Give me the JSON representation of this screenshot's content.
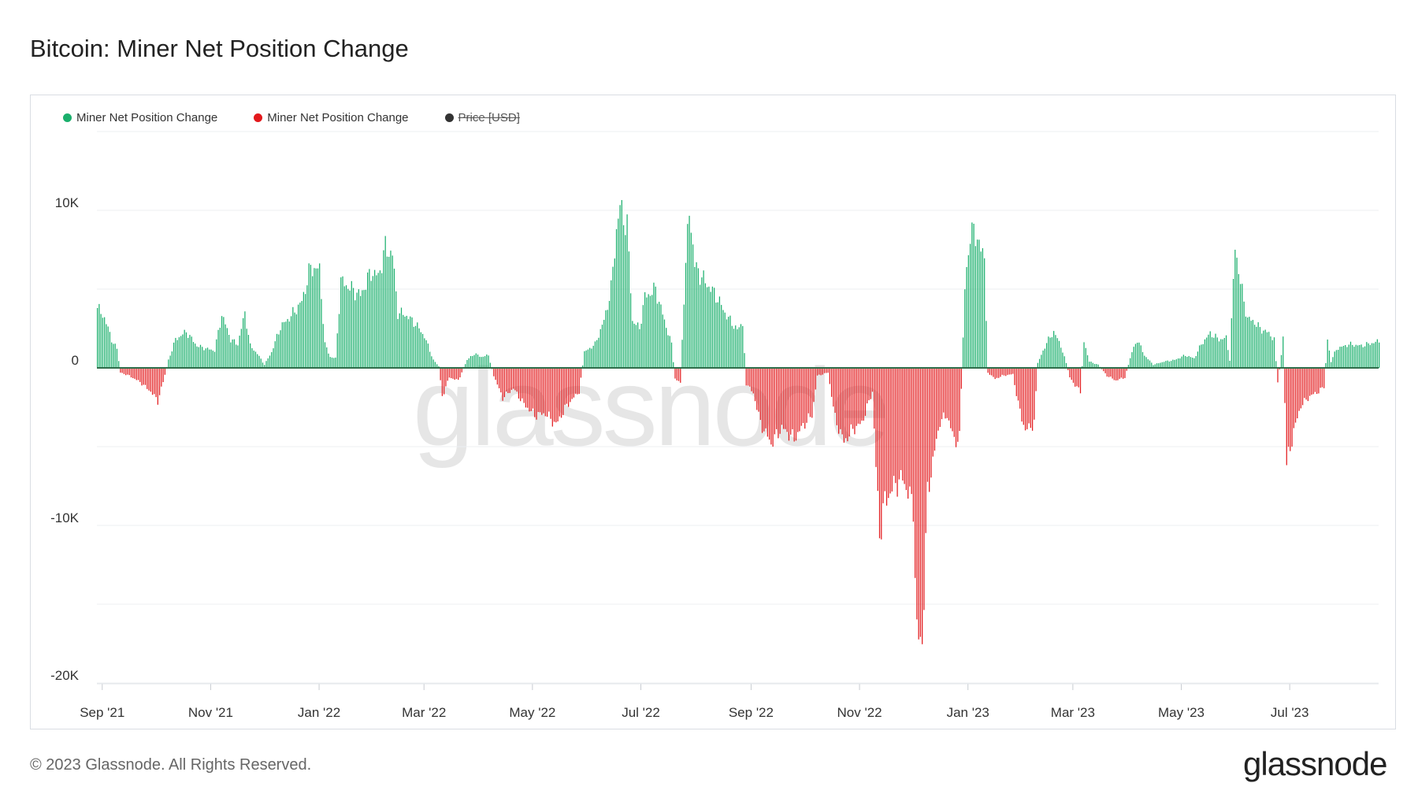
{
  "title": "Bitcoin: Miner Net Position Change",
  "legend": [
    {
      "label": "Miner Net Position Change",
      "color": "#1aaf6c"
    },
    {
      "label": "Miner Net Position Change",
      "color": "#e3191c"
    },
    {
      "label": "Price [USD]",
      "color": "#333333",
      "disabled": true
    }
  ],
  "footer": "© 2023 Glassnode. All Rights Reserved.",
  "logo": "glassnode",
  "watermark": "glassnode",
  "colors": {
    "positive": "#1aaf6c",
    "negative": "#e3191c",
    "zero_line": "#2f6d4a",
    "grid": "#eceff2"
  },
  "chart_data": {
    "type": "bar",
    "title": "Bitcoin: Miner Net Position Change",
    "ylim": [
      -20000,
      14000
    ],
    "yticks": [
      {
        "value": 10000,
        "label": "10K"
      },
      {
        "value": 0,
        "label": "0"
      },
      {
        "value": -10000,
        "label": "-10K"
      },
      {
        "value": -20000,
        "label": "-20K"
      }
    ],
    "xlim": [
      "2021-08-29",
      "2023-08-20"
    ],
    "xticks": [
      {
        "date": "2021-09-01",
        "label": "Sep '21"
      },
      {
        "date": "2021-11-01",
        "label": "Nov '21"
      },
      {
        "date": "2022-01-01",
        "label": "Jan '22"
      },
      {
        "date": "2022-03-01",
        "label": "Mar '22"
      },
      {
        "date": "2022-05-01",
        "label": "May '22"
      },
      {
        "date": "2022-07-01",
        "label": "Jul '22"
      },
      {
        "date": "2022-09-01",
        "label": "Sep '22"
      },
      {
        "date": "2022-11-01",
        "label": "Nov '22"
      },
      {
        "date": "2023-01-01",
        "label": "Jan '23"
      },
      {
        "date": "2023-03-01",
        "label": "Mar '23"
      },
      {
        "date": "2023-05-01",
        "label": "May '23"
      },
      {
        "date": "2023-07-01",
        "label": "Jul '23"
      }
    ],
    "series_name": "Miner Net Position Change",
    "anchors": [
      [
        "2021-08-29",
        3800
      ],
      [
        "2021-09-02",
        3200
      ],
      [
        "2021-09-06",
        1800
      ],
      [
        "2021-09-09",
        1200
      ],
      [
        "2021-09-11",
        -300
      ],
      [
        "2021-09-16",
        -500
      ],
      [
        "2021-09-22",
        -900
      ],
      [
        "2021-09-28",
        -1500
      ],
      [
        "2021-10-02",
        -2100
      ],
      [
        "2021-10-05",
        -900
      ],
      [
        "2021-10-08",
        500
      ],
      [
        "2021-10-12",
        1800
      ],
      [
        "2021-10-18",
        2300
      ],
      [
        "2021-10-24",
        1400
      ],
      [
        "2021-10-30",
        1200
      ],
      [
        "2021-11-03",
        1100
      ],
      [
        "2021-11-07",
        3400
      ],
      [
        "2021-11-12",
        1800
      ],
      [
        "2021-11-16",
        1500
      ],
      [
        "2021-11-20",
        3500
      ],
      [
        "2021-11-23",
        1400
      ],
      [
        "2021-11-27",
        900
      ],
      [
        "2021-12-01",
        200
      ],
      [
        "2021-12-05",
        1000
      ],
      [
        "2021-12-10",
        2600
      ],
      [
        "2021-12-16",
        3300
      ],
      [
        "2021-12-22",
        4200
      ],
      [
        "2021-12-27",
        6400
      ],
      [
        "2022-01-01",
        6200
      ],
      [
        "2022-01-04",
        1500
      ],
      [
        "2022-01-07",
        700
      ],
      [
        "2022-01-10",
        600
      ],
      [
        "2022-01-13",
        5500
      ],
      [
        "2022-01-18",
        5100
      ],
      [
        "2022-01-24",
        4600
      ],
      [
        "2022-01-30",
        6100
      ],
      [
        "2022-02-03",
        5800
      ],
      [
        "2022-02-07",
        7600
      ],
      [
        "2022-02-11",
        7200
      ],
      [
        "2022-02-14",
        3500
      ],
      [
        "2022-02-18",
        3400
      ],
      [
        "2022-02-24",
        2800
      ],
      [
        "2022-03-01",
        2000
      ],
      [
        "2022-03-06",
        500
      ],
      [
        "2022-03-09",
        100
      ],
      [
        "2022-03-11",
        -1800
      ],
      [
        "2022-03-15",
        -600
      ],
      [
        "2022-03-20",
        -800
      ],
      [
        "2022-03-25",
        500
      ],
      [
        "2022-03-29",
        900
      ],
      [
        "2022-04-02",
        700
      ],
      [
        "2022-04-06",
        800
      ],
      [
        "2022-04-09",
        -500
      ],
      [
        "2022-04-14",
        -1900
      ],
      [
        "2022-04-20",
        -1300
      ],
      [
        "2022-04-26",
        -2300
      ],
      [
        "2022-05-02",
        -3000
      ],
      [
        "2022-05-08",
        -2900
      ],
      [
        "2022-05-14",
        -3600
      ],
      [
        "2022-05-20",
        -2400
      ],
      [
        "2022-05-27",
        -1500
      ],
      [
        "2022-05-30",
        1000
      ],
      [
        "2022-06-05",
        1500
      ],
      [
        "2022-06-10",
        3000
      ],
      [
        "2022-06-14",
        5000
      ],
      [
        "2022-06-17",
        8800
      ],
      [
        "2022-06-19",
        10200
      ],
      [
        "2022-06-23",
        9000
      ],
      [
        "2022-06-26",
        3000
      ],
      [
        "2022-06-30",
        2500
      ],
      [
        "2022-07-03",
        4500
      ],
      [
        "2022-07-09",
        5000
      ],
      [
        "2022-07-14",
        3000
      ],
      [
        "2022-07-18",
        1500
      ],
      [
        "2022-07-20",
        -700
      ],
      [
        "2022-07-23",
        -900
      ],
      [
        "2022-07-25",
        4500
      ],
      [
        "2022-07-28",
        10200
      ],
      [
        "2022-07-31",
        6500
      ],
      [
        "2022-08-05",
        5600
      ],
      [
        "2022-08-12",
        4600
      ],
      [
        "2022-08-18",
        3300
      ],
      [
        "2022-08-24",
        2400
      ],
      [
        "2022-08-27",
        2900
      ],
      [
        "2022-08-29",
        -1000
      ],
      [
        "2022-09-02",
        -1600
      ],
      [
        "2022-09-06",
        -3500
      ],
      [
        "2022-09-12",
        -4800
      ],
      [
        "2022-09-18",
        -3800
      ],
      [
        "2022-09-25",
        -4500
      ],
      [
        "2022-10-01",
        -3500
      ],
      [
        "2022-10-05",
        -3000
      ],
      [
        "2022-10-08",
        -500
      ],
      [
        "2022-10-14",
        -300
      ],
      [
        "2022-10-18",
        -3200
      ],
      [
        "2022-10-23",
        -4700
      ],
      [
        "2022-10-28",
        -3900
      ],
      [
        "2022-11-02",
        -3500
      ],
      [
        "2022-11-05",
        -2500
      ],
      [
        "2022-11-08",
        -1500
      ],
      [
        "2022-11-10",
        -6300
      ],
      [
        "2022-11-12",
        -10500
      ],
      [
        "2022-11-15",
        -8500
      ],
      [
        "2022-11-20",
        -7500
      ],
      [
        "2022-11-25",
        -7000
      ],
      [
        "2022-12-01",
        -8800
      ],
      [
        "2022-12-03",
        -17200
      ],
      [
        "2022-12-06",
        -17300
      ],
      [
        "2022-12-09",
        -8000
      ],
      [
        "2022-12-12",
        -5900
      ],
      [
        "2022-12-16",
        -3400
      ],
      [
        "2022-12-20",
        -3000
      ],
      [
        "2022-12-24",
        -4600
      ],
      [
        "2022-12-27",
        -4500
      ],
      [
        "2022-12-30",
        5000
      ],
      [
        "2023-01-02",
        8600
      ],
      [
        "2023-01-06",
        8400
      ],
      [
        "2023-01-08",
        7400
      ],
      [
        "2023-01-10",
        7000
      ],
      [
        "2023-01-12",
        -300
      ],
      [
        "2023-01-16",
        -700
      ],
      [
        "2023-01-20",
        -500
      ],
      [
        "2023-01-26",
        -400
      ],
      [
        "2023-01-29",
        -2300
      ],
      [
        "2023-02-02",
        -4000
      ],
      [
        "2023-02-07",
        -3500
      ],
      [
        "2023-02-09",
        300
      ],
      [
        "2023-02-14",
        1600
      ],
      [
        "2023-02-18",
        2300
      ],
      [
        "2023-02-22",
        1400
      ],
      [
        "2023-02-25",
        300
      ],
      [
        "2023-02-27",
        -600
      ],
      [
        "2023-03-02",
        -1100
      ],
      [
        "2023-03-05",
        -1500
      ],
      [
        "2023-03-07",
        1700
      ],
      [
        "2023-03-10",
        400
      ],
      [
        "2023-03-15",
        200
      ],
      [
        "2023-03-20",
        -500
      ],
      [
        "2023-03-25",
        -800
      ],
      [
        "2023-03-30",
        -600
      ],
      [
        "2023-04-03",
        1000
      ],
      [
        "2023-04-06",
        1800
      ],
      [
        "2023-04-10",
        800
      ],
      [
        "2023-04-15",
        200
      ],
      [
        "2023-04-21",
        400
      ],
      [
        "2023-04-27",
        500
      ],
      [
        "2023-05-03",
        800
      ],
      [
        "2023-05-08",
        600
      ],
      [
        "2023-05-12",
        1500
      ],
      [
        "2023-05-17",
        2200
      ],
      [
        "2023-05-22",
        1800
      ],
      [
        "2023-05-26",
        1900
      ],
      [
        "2023-05-28",
        500
      ],
      [
        "2023-05-31",
        7800
      ],
      [
        "2023-06-03",
        5400
      ],
      [
        "2023-06-07",
        3100
      ],
      [
        "2023-06-10",
        3000
      ],
      [
        "2023-06-14",
        2500
      ],
      [
        "2023-06-19",
        2200
      ],
      [
        "2023-06-22",
        1800
      ],
      [
        "2023-06-24",
        -1000
      ],
      [
        "2023-06-26",
        800
      ],
      [
        "2023-06-27",
        2000
      ],
      [
        "2023-06-29",
        -6200
      ],
      [
        "2023-07-03",
        -4000
      ],
      [
        "2023-07-07",
        -2400
      ],
      [
        "2023-07-12",
        -1800
      ],
      [
        "2023-07-17",
        -1500
      ],
      [
        "2023-07-20",
        -1200
      ],
      [
        "2023-07-22",
        1800
      ],
      [
        "2023-07-24",
        400
      ],
      [
        "2023-07-27",
        1200
      ],
      [
        "2023-08-03",
        1500
      ],
      [
        "2023-08-10",
        1400
      ],
      [
        "2023-08-17",
        1600
      ],
      [
        "2023-08-20",
        1700
      ]
    ]
  }
}
